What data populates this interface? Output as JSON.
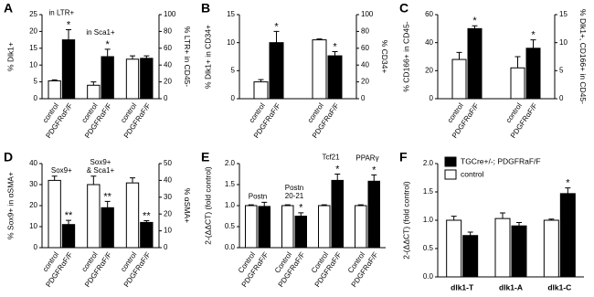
{
  "chart_data": [
    {
      "type": "bar",
      "panel": "A",
      "ylabel": "% Dlk1+",
      "y2label": "% LTR+ in CD45-",
      "ylim": [
        0,
        25
      ],
      "yticks": [
        0,
        5,
        10,
        15,
        20,
        25
      ],
      "y2lim": [
        0,
        100
      ],
      "y2ticks": [
        0,
        20,
        40,
        60,
        80,
        100
      ],
      "categories": [
        "control",
        "PDGFRαF/F",
        "control",
        "PDGFRαF/F",
        "control",
        "PDGFRαF/F"
      ],
      "values": [
        5.3,
        17.5,
        4,
        12.5,
        47,
        48
      ],
      "errors": [
        0.3,
        3,
        1,
        2.2,
        4,
        3
      ],
      "colors": [
        "#ffffff",
        "#000000",
        "#ffffff",
        "#000000",
        "#ffffff",
        "#000000"
      ],
      "axes": [
        "y",
        "y",
        "y",
        "y",
        "y2",
        "y2"
      ],
      "significance": [
        null,
        "*",
        null,
        "*",
        null,
        null
      ],
      "group_labels": [
        [
          "in LTR+"
        ],
        [
          "in Sca1+"
        ],
        null
      ]
    },
    {
      "type": "bar",
      "panel": "B",
      "ylabel": "% Dlk1+ in CD34+",
      "y2label": "% CD34+",
      "ylim": [
        0,
        15
      ],
      "yticks": [
        0,
        5,
        10,
        15
      ],
      "y2lim": [
        0,
        100
      ],
      "y2ticks": [
        0,
        20,
        40,
        60,
        80,
        100
      ],
      "categories": [
        "control",
        "PDGFRαF/F",
        "control",
        "PDGFRαF/F"
      ],
      "values": [
        3,
        10,
        70,
        51
      ],
      "errors": [
        0.4,
        2,
        1,
        5
      ],
      "colors": [
        "#ffffff",
        "#000000",
        "#ffffff",
        "#000000"
      ],
      "axes": [
        "y",
        "y",
        "y2",
        "y2"
      ],
      "significance": [
        null,
        "*",
        null,
        "*"
      ]
    },
    {
      "type": "bar",
      "panel": "C",
      "ylabel": "% CD166+ in CD45-",
      "y2label": "% Dlk1+, CD166+ in CD45-",
      "ylim": [
        0,
        60
      ],
      "yticks": [
        0,
        20,
        40,
        60
      ],
      "y2lim": [
        0,
        15
      ],
      "y2ticks": [
        0,
        5,
        10,
        15
      ],
      "categories": [
        "control",
        "PDGFRαF/F",
        "control",
        "PDGFRαF/F"
      ],
      "values": [
        28,
        50,
        5.5,
        9
      ],
      "errors": [
        5,
        2,
        2,
        1.5
      ],
      "colors": [
        "#ffffff",
        "#000000",
        "#ffffff",
        "#000000"
      ],
      "axes": [
        "y",
        "y",
        "y2",
        "y2"
      ],
      "significance": [
        null,
        "*",
        null,
        "*"
      ]
    },
    {
      "type": "bar",
      "panel": "D",
      "ylabel": "% Sox9+ in αSMA+",
      "y2label": "% αSMA+",
      "ylim": [
        0,
        40
      ],
      "yticks": [
        0,
        10,
        20,
        30,
        40
      ],
      "y2lim": [
        0,
        50
      ],
      "y2ticks": [
        0,
        10,
        20,
        30,
        40,
        50
      ],
      "categories": [
        "control",
        "PDGFRαF/F",
        "control",
        "PDGFRαF/F",
        "control",
        "PDGFRαF/F"
      ],
      "values": [
        32,
        11,
        30,
        19,
        38.5,
        15
      ],
      "errors": [
        2,
        2,
        4,
        3,
        3,
        1
      ],
      "colors": [
        "#ffffff",
        "#000000",
        "#ffffff",
        "#000000",
        "#ffffff",
        "#000000"
      ],
      "axes": [
        "y",
        "y",
        "y",
        "y",
        "y2",
        "y2"
      ],
      "significance": [
        null,
        "**",
        null,
        "**",
        null,
        "**"
      ],
      "group_labels": [
        [
          "Sox9+"
        ],
        [
          "Sox9+",
          "& Sca1+"
        ],
        null
      ]
    },
    {
      "type": "bar",
      "panel": "E",
      "ylabel": "2-(ΔΔCT) (fold control)",
      "ylim": [
        0,
        2
      ],
      "yticks": [
        {
          "value": 0,
          "label": "0.0"
        },
        0.5,
        {
          "value": 1,
          "label": "1.0"
        },
        1.5,
        {
          "value": 2,
          "label": "2.0"
        }
      ],
      "categories": [
        "Control",
        "PDGFRαF/F",
        "Control",
        "PDGFRαF/F",
        "Control",
        "PDGFRαF/F",
        "Control",
        "PDGFRαF/F"
      ],
      "values": [
        1.0,
        0.98,
        1.0,
        0.75,
        1.0,
        1.6,
        1.0,
        1.58
      ],
      "errors": [
        0.02,
        0.1,
        0.02,
        0.08,
        0.02,
        0.15,
        0.02,
        0.15
      ],
      "colors": [
        "#ffffff",
        "#000000",
        "#ffffff",
        "#000000",
        "#ffffff",
        "#000000",
        "#ffffff",
        "#000000"
      ],
      "significance": [
        null,
        null,
        null,
        "*",
        null,
        "*",
        null,
        "*"
      ],
      "group_labels": [
        [
          "Postn"
        ],
        [
          "Postn",
          "20-21"
        ],
        [
          "Tcf21"
        ],
        [
          "PPARγ"
        ]
      ]
    },
    {
      "type": "bar",
      "panel": "F",
      "ylabel": "2-(ΔΔCT) (fold control)",
      "ylim": [
        0,
        2
      ],
      "yticks": [
        {
          "value": 0,
          "label": "0.0"
        },
        0.5,
        {
          "value": 1,
          "label": "1.0"
        },
        1.5,
        {
          "value": 2,
          "label": "2.0"
        }
      ],
      "categories": [
        "dlk1-T",
        "dlk1-A",
        "dlk1-C"
      ],
      "legend": "upper left",
      "series": [
        {
          "name": "control",
          "color": "#ffffff",
          "values": [
            1.0,
            1.03,
            1.0
          ],
          "errors": [
            0.07,
            0.1,
            0.02
          ],
          "significance": [
            null,
            null,
            null
          ]
        },
        {
          "name": "TGCre+/-; PDGFRaF/F",
          "color": "#000000",
          "values": [
            0.73,
            0.9,
            1.47
          ],
          "errors": [
            0.06,
            0.06,
            0.1
          ],
          "significance": [
            null,
            null,
            "*"
          ]
        }
      ]
    }
  ]
}
